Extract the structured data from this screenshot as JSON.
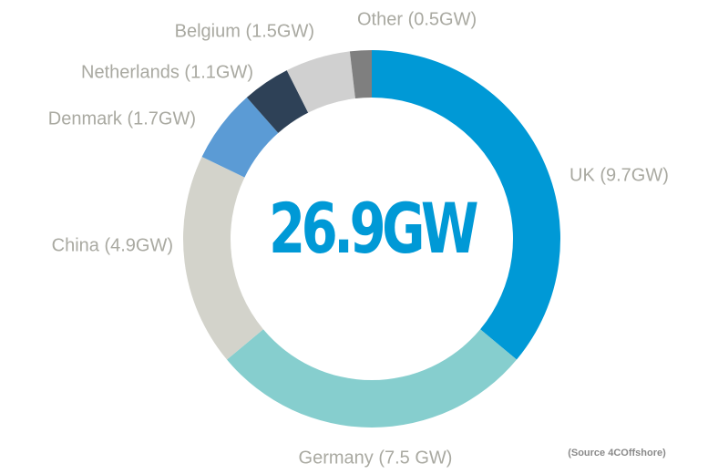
{
  "chart_data": {
    "type": "donut",
    "values": [
      9.7,
      7.5,
      4.9,
      1.7,
      1.1,
      1.5,
      0.5
    ],
    "value_labels": [
      "UK (9.7GW)",
      "Germany (7.5 GW)",
      "China (4.9GW)",
      "Denmark (1.7GW)",
      "Netherlands (1.1GW)",
      "Belgium (1.5GW)",
      "Other (0.5GW)"
    ],
    "colors": [
      "#0099d6",
      "#86cece",
      "#d3d3cb",
      "#5b9bd5",
      "#2e4157",
      "#d0d0d0",
      "#7f7f7f"
    ],
    "center_label": "26.9GW",
    "source": "(Source 4COffshore)"
  }
}
